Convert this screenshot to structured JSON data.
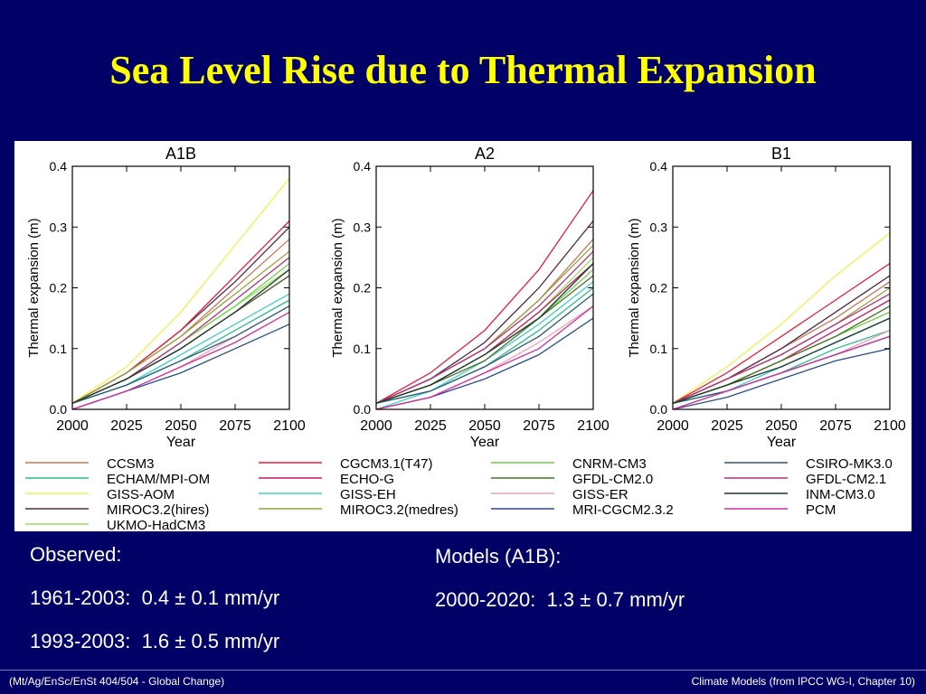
{
  "slide": {
    "title": "Sea Level Rise due to Thermal Expansion",
    "observed_heading": "Observed:",
    "observed_rows": [
      {
        "period": "1961-2003:",
        "rate": "0.4 ± 0.1 mm/yr"
      },
      {
        "period": "1993-2003:",
        "rate": "1.6 ± 0.5 mm/yr"
      }
    ],
    "models_heading": "Models (A1B):",
    "models_rows": [
      {
        "period": "2000-2020:",
        "rate": "1.3 ± 0.7 mm/yr"
      }
    ],
    "footer_left": "(Mt/Ag/EnSc/EnSt 404/504 - Global Change)",
    "footer_right": "Climate Models  (from IPCC WG-I, Chapter 10)"
  },
  "colors": {
    "background": "#000066",
    "title": "#ffff00"
  },
  "chart_data": [
    {
      "type": "line",
      "title": "A1B",
      "xlabel": "Year",
      "ylabel": "Thermal expansion (m)",
      "xlim": [
        2000,
        2100
      ],
      "ylim": [
        0,
        0.4
      ],
      "xticks": [
        2000,
        2025,
        2050,
        2075,
        2100
      ],
      "yticks": [
        0.0,
        0.1,
        0.2,
        0.3,
        0.4
      ],
      "x": [
        2000,
        2025,
        2050,
        2075,
        2100
      ],
      "series": [
        {
          "model": "CCSM3",
          "values": [
            0.01,
            0.06,
            0.12,
            0.2,
            0.28
          ]
        },
        {
          "model": "ECHAM/MPI-OM",
          "values": [
            0.01,
            0.04,
            0.08,
            0.13,
            0.18
          ]
        },
        {
          "model": "GISS-AOM",
          "values": [
            0.01,
            0.07,
            0.16,
            0.27,
            0.38
          ]
        },
        {
          "model": "MIROC3.2(hires)",
          "values": [
            0.01,
            0.06,
            0.13,
            0.21,
            0.3
          ]
        },
        {
          "model": "UKMO-HadCM3",
          "values": [
            0.01,
            0.05,
            0.11,
            0.17,
            0.23
          ]
        },
        {
          "model": "CGCM3.1(T47)",
          "values": [
            0.01,
            0.06,
            0.13,
            0.22,
            0.31
          ]
        },
        {
          "model": "ECHO-G",
          "values": [
            0.01,
            0.05,
            0.1,
            0.16,
            0.22
          ]
        },
        {
          "model": "GISS-EH",
          "values": [
            0.01,
            0.04,
            0.09,
            0.14,
            0.19
          ]
        },
        {
          "model": "MIROC3.2(medres)",
          "values": [
            0.01,
            0.06,
            0.12,
            0.19,
            0.26
          ]
        },
        {
          "model": "CNRM-CM3",
          "values": [
            0.01,
            0.05,
            0.11,
            0.17,
            0.24
          ]
        },
        {
          "model": "GFDL-CM2.0",
          "values": [
            0.01,
            0.05,
            0.1,
            0.16,
            0.22
          ]
        },
        {
          "model": "GISS-ER",
          "values": [
            0.0,
            0.03,
            0.07,
            0.12,
            0.17
          ]
        },
        {
          "model": "MRI-CGCM2.3.2",
          "values": [
            0.0,
            0.03,
            0.06,
            0.1,
            0.14
          ]
        },
        {
          "model": "CSIRO-MK3.0",
          "values": [
            0.01,
            0.04,
            0.08,
            0.12,
            0.17
          ]
        },
        {
          "model": "GFDL-CM2.1",
          "values": [
            0.01,
            0.05,
            0.11,
            0.18,
            0.25
          ]
        },
        {
          "model": "INM-CM3.0",
          "values": [
            0.01,
            0.05,
            0.1,
            0.16,
            0.23
          ]
        },
        {
          "model": "PCM",
          "values": [
            0.0,
            0.03,
            0.07,
            0.11,
            0.16
          ]
        }
      ]
    },
    {
      "type": "line",
      "title": "A2",
      "xlabel": "Year",
      "ylabel": "Thermal expansion (m)",
      "xlim": [
        2000,
        2100
      ],
      "ylim": [
        0,
        0.4
      ],
      "xticks": [
        2000,
        2025,
        2050,
        2075,
        2100
      ],
      "yticks": [
        0.0,
        0.1,
        0.2,
        0.3,
        0.4
      ],
      "x": [
        2000,
        2025,
        2050,
        2075,
        2100
      ],
      "series": [
        {
          "model": "CCSM3",
          "values": [
            0.01,
            0.05,
            0.1,
            0.18,
            0.28
          ]
        },
        {
          "model": "ECHAM/MPI-OM",
          "values": [
            0.01,
            0.03,
            0.07,
            0.13,
            0.2
          ]
        },
        {
          "model": "MIROC3.2(hires)",
          "values": [
            0.01,
            0.05,
            0.11,
            0.2,
            0.31
          ]
        },
        {
          "model": "UKMO-HadCM3",
          "values": [
            0.01,
            0.04,
            0.09,
            0.16,
            0.25
          ]
        },
        {
          "model": "CGCM3.1(T47)",
          "values": [
            0.01,
            0.06,
            0.13,
            0.23,
            0.36
          ]
        },
        {
          "model": "ECHO-G",
          "values": [
            0.01,
            0.04,
            0.09,
            0.16,
            0.24
          ]
        },
        {
          "model": "GISS-EH",
          "values": [
            0.0,
            0.03,
            0.08,
            0.14,
            0.21
          ]
        },
        {
          "model": "MIROC3.2(medres)",
          "values": [
            0.01,
            0.05,
            0.1,
            0.18,
            0.27
          ]
        },
        {
          "model": "CNRM-CM3",
          "values": [
            0.01,
            0.04,
            0.09,
            0.15,
            0.23
          ]
        },
        {
          "model": "GFDL-CM2.0",
          "values": [
            0.01,
            0.04,
            0.08,
            0.15,
            0.22
          ]
        },
        {
          "model": "GISS-ER",
          "values": [
            0.0,
            0.02,
            0.06,
            0.11,
            0.17
          ]
        },
        {
          "model": "MRI-CGCM2.3.2",
          "values": [
            0.0,
            0.02,
            0.05,
            0.09,
            0.15
          ]
        },
        {
          "model": "CSIRO-MK3.0",
          "values": [
            0.01,
            0.03,
            0.07,
            0.12,
            0.19
          ]
        },
        {
          "model": "GFDL-CM2.1",
          "values": [
            0.01,
            0.05,
            0.1,
            0.17,
            0.26
          ]
        },
        {
          "model": "INM-CM3.0",
          "values": [
            0.01,
            0.04,
            0.09,
            0.15,
            0.24
          ]
        },
        {
          "model": "PCM",
          "values": [
            0.0,
            0.02,
            0.06,
            0.1,
            0.17
          ]
        }
      ]
    },
    {
      "type": "line",
      "title": "B1",
      "xlabel": "Year",
      "ylabel": "Thermal expansion (m)",
      "xlim": [
        2000,
        2100
      ],
      "ylim": [
        0,
        0.4
      ],
      "xticks": [
        2000,
        2025,
        2050,
        2075,
        2100
      ],
      "yticks": [
        0.0,
        0.1,
        0.2,
        0.3,
        0.4
      ],
      "x": [
        2000,
        2025,
        2050,
        2075,
        2100
      ],
      "series": [
        {
          "model": "CCSM3",
          "values": [
            0.01,
            0.05,
            0.1,
            0.15,
            0.21
          ]
        },
        {
          "model": "ECHAM/MPI-OM",
          "values": [
            0.01,
            0.03,
            0.06,
            0.1,
            0.13
          ]
        },
        {
          "model": "GISS-AOM",
          "values": [
            0.01,
            0.07,
            0.14,
            0.22,
            0.29
          ]
        },
        {
          "model": "MIROC3.2(hires)",
          "values": [
            0.01,
            0.05,
            0.1,
            0.16,
            0.22
          ]
        },
        {
          "model": "UKMO-HadCM3",
          "values": [
            0.01,
            0.04,
            0.08,
            0.12,
            0.17
          ]
        },
        {
          "model": "CGCM3.1(T47)",
          "values": [
            0.01,
            0.06,
            0.12,
            0.18,
            0.24
          ]
        },
        {
          "model": "ECHO-G",
          "values": [
            0.01,
            0.04,
            0.08,
            0.13,
            0.18
          ]
        },
        {
          "model": "GISS-EH",
          "values": [
            0.01,
            0.03,
            0.07,
            0.11,
            0.15
          ]
        },
        {
          "model": "MIROC3.2(medres)",
          "values": [
            0.01,
            0.05,
            0.09,
            0.14,
            0.2
          ]
        },
        {
          "model": "CNRM-CM3",
          "values": [
            0.01,
            0.04,
            0.08,
            0.12,
            0.16
          ]
        },
        {
          "model": "GFDL-CM2.0",
          "values": [
            0.01,
            0.04,
            0.08,
            0.12,
            0.17
          ]
        },
        {
          "model": "GISS-ER",
          "values": [
            0.0,
            0.03,
            0.06,
            0.09,
            0.13
          ]
        },
        {
          "model": "MRI-CGCM2.3.2",
          "values": [
            0.0,
            0.02,
            0.05,
            0.08,
            0.1
          ]
        },
        {
          "model": "CSIRO-MK3.0",
          "values": [
            0.01,
            0.03,
            0.06,
            0.09,
            0.12
          ]
        },
        {
          "model": "GFDL-CM2.1",
          "values": [
            0.01,
            0.05,
            0.09,
            0.14,
            0.19
          ]
        },
        {
          "model": "INM-CM3.0",
          "values": [
            0.01,
            0.04,
            0.07,
            0.11,
            0.15
          ]
        },
        {
          "model": "PCM",
          "values": [
            0.0,
            0.03,
            0.06,
            0.09,
            0.12
          ]
        }
      ]
    }
  ],
  "legend": [
    {
      "label": "CCSM3",
      "color": "#c8785a"
    },
    {
      "label": "CGCM3.1(T47)",
      "color": "#e8203c"
    },
    {
      "label": "CNRM-CM3",
      "color": "#6cd24a"
    },
    {
      "label": "CSIRO-MK3.0",
      "color": "#2e5878"
    },
    {
      "label": "ECHAM/MPI-OM",
      "color": "#2cbc8c"
    },
    {
      "label": "ECHO-G",
      "color": "#c81c5c"
    },
    {
      "label": "GFDL-CM2.0",
      "color": "#506e2c"
    },
    {
      "label": "GFDL-CM2.1",
      "color": "#b4307c"
    },
    {
      "label": "GISS-AOM",
      "color": "#f0f050"
    },
    {
      "label": "GISS-EH",
      "color": "#40d0c4"
    },
    {
      "label": "GISS-ER",
      "color": "#f4a0b4"
    },
    {
      "label": "INM-CM3.0",
      "color": "#1a3a2e"
    },
    {
      "label": "MIROC3.2(hires)",
      "color": "#502a44"
    },
    {
      "label": "MIROC3.2(medres)",
      "color": "#9aa240"
    },
    {
      "label": "MRI-CGCM2.3.2",
      "color": "#2a4c8c"
    },
    {
      "label": "PCM",
      "color": "#d030a0"
    },
    {
      "label": "UKMO-HadCM3",
      "color": "#9ae060"
    }
  ]
}
